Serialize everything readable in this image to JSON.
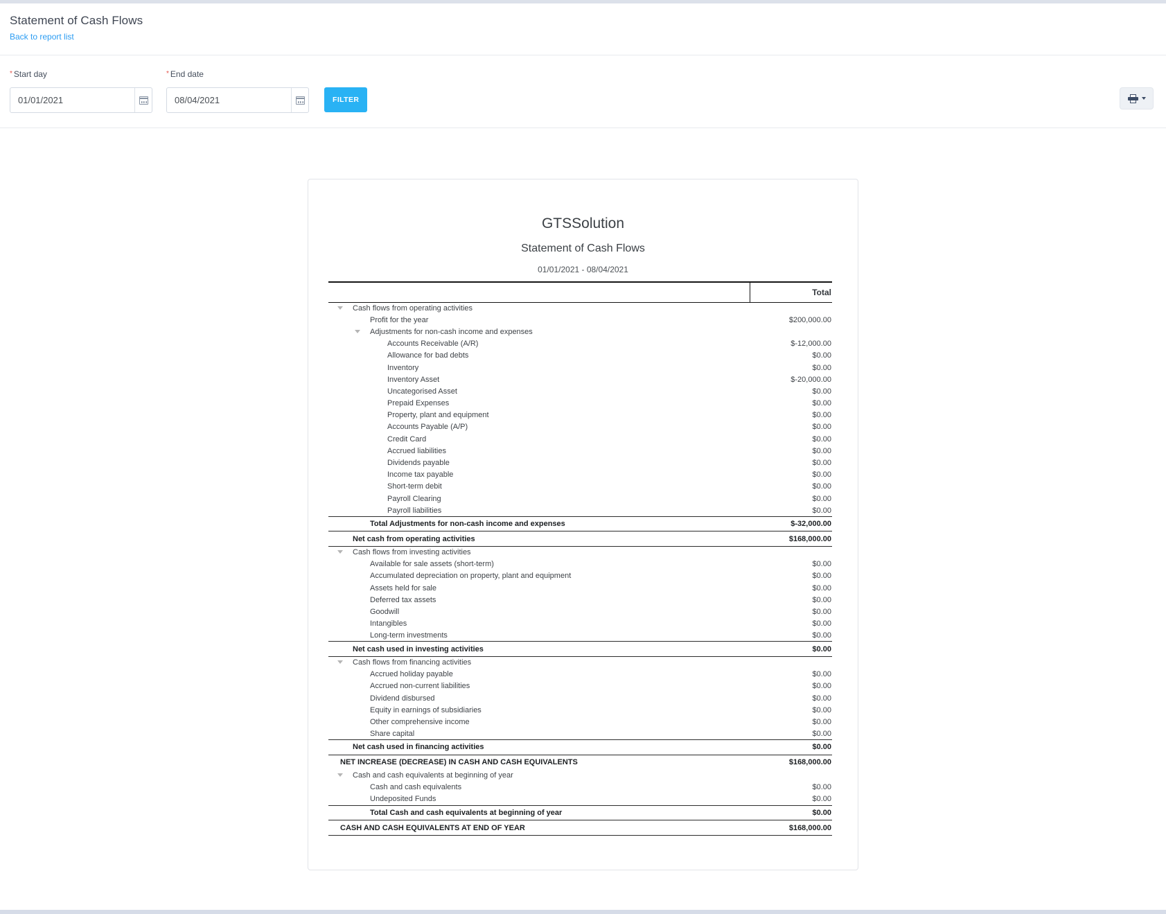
{
  "header": {
    "title": "Statement of Cash Flows",
    "back_link": "Back to report list"
  },
  "filters": {
    "required_mark": "*",
    "start_label": "Start day",
    "start_value": "01/01/2021",
    "end_label": "End date",
    "end_value": "08/04/2021",
    "filter_button": "FILTER"
  },
  "report": {
    "company": "GTSSolution",
    "title": "Statement of Cash Flows",
    "date_range": "01/01/2021 - 08/04/2021",
    "total_header": "Total",
    "rows": [
      {
        "label": "Cash flows from operating activities",
        "value": "",
        "level": 0,
        "type": "group"
      },
      {
        "label": "Profit for the year",
        "value": "$200,000.00",
        "level": 1,
        "type": "item"
      },
      {
        "label": "Adjustments for non-cash income and expenses",
        "value": "",
        "level": 1,
        "type": "group"
      },
      {
        "label": "Accounts Receivable (A/R)",
        "value": "$-12,000.00",
        "level": 2,
        "type": "item"
      },
      {
        "label": "Allowance for bad debts",
        "value": "$0.00",
        "level": 2,
        "type": "item"
      },
      {
        "label": "Inventory",
        "value": "$0.00",
        "level": 2,
        "type": "item"
      },
      {
        "label": "Inventory Asset",
        "value": "$-20,000.00",
        "level": 2,
        "type": "item"
      },
      {
        "label": "Uncategorised Asset",
        "value": "$0.00",
        "level": 2,
        "type": "item"
      },
      {
        "label": "Prepaid Expenses",
        "value": "$0.00",
        "level": 2,
        "type": "item"
      },
      {
        "label": "Property, plant and equipment",
        "value": "$0.00",
        "level": 2,
        "type": "item"
      },
      {
        "label": "Accounts Payable (A/P)",
        "value": "$0.00",
        "level": 2,
        "type": "item"
      },
      {
        "label": "Credit Card",
        "value": "$0.00",
        "level": 2,
        "type": "item"
      },
      {
        "label": "Accrued liabilities",
        "value": "$0.00",
        "level": 2,
        "type": "item"
      },
      {
        "label": "Dividends payable",
        "value": "$0.00",
        "level": 2,
        "type": "item"
      },
      {
        "label": "Income tax payable",
        "value": "$0.00",
        "level": 2,
        "type": "item"
      },
      {
        "label": "Short-term debit",
        "value": "$0.00",
        "level": 2,
        "type": "item"
      },
      {
        "label": "Payroll Clearing",
        "value": "$0.00",
        "level": 2,
        "type": "item"
      },
      {
        "label": "Payroll liabilities",
        "value": "$0.00",
        "level": 2,
        "type": "item"
      },
      {
        "label": "Total Adjustments for non-cash income and expenses",
        "value": "$-32,000.00",
        "level": 1,
        "type": "total"
      },
      {
        "label": "Net cash from operating activities",
        "value": "$168,000.00",
        "level": 0,
        "type": "total"
      },
      {
        "label": "Cash flows from investing activities",
        "value": "",
        "level": 0,
        "type": "group"
      },
      {
        "label": "Available for sale assets (short-term)",
        "value": "$0.00",
        "level": 1,
        "type": "item"
      },
      {
        "label": "Accumulated depreciation on property, plant and equipment",
        "value": "$0.00",
        "level": 1,
        "type": "item"
      },
      {
        "label": "Assets held for sale",
        "value": "$0.00",
        "level": 1,
        "type": "item"
      },
      {
        "label": "Deferred tax assets",
        "value": "$0.00",
        "level": 1,
        "type": "item"
      },
      {
        "label": "Goodwill",
        "value": "$0.00",
        "level": 1,
        "type": "item"
      },
      {
        "label": "Intangibles",
        "value": "$0.00",
        "level": 1,
        "type": "item"
      },
      {
        "label": "Long-term investments",
        "value": "$0.00",
        "level": 1,
        "type": "item"
      },
      {
        "label": "Net cash used in investing activities",
        "value": "$0.00",
        "level": 0,
        "type": "total"
      },
      {
        "label": "Cash flows from financing activities",
        "value": "",
        "level": 0,
        "type": "group"
      },
      {
        "label": "Accrued holiday payable",
        "value": "$0.00",
        "level": 1,
        "type": "item"
      },
      {
        "label": "Accrued non-current liabilities",
        "value": "$0.00",
        "level": 1,
        "type": "item"
      },
      {
        "label": "Dividend disbursed",
        "value": "$0.00",
        "level": 1,
        "type": "item"
      },
      {
        "label": "Equity in earnings of subsidiaries",
        "value": "$0.00",
        "level": 1,
        "type": "item"
      },
      {
        "label": "Other comprehensive income",
        "value": "$0.00",
        "level": 1,
        "type": "item"
      },
      {
        "label": "Share capital",
        "value": "$0.00",
        "level": 1,
        "type": "item"
      },
      {
        "label": "Net cash used in financing activities",
        "value": "$0.00",
        "level": 0,
        "type": "total"
      },
      {
        "label": "NET INCREASE (DECREASE) IN CASH AND CASH EQUIVALENTS",
        "value": "$168,000.00",
        "level": -1,
        "type": "grand_open"
      },
      {
        "label": "Cash and cash equivalents at beginning of year",
        "value": "",
        "level": 0,
        "type": "group"
      },
      {
        "label": "Cash and cash equivalents",
        "value": "$0.00",
        "level": 1,
        "type": "item"
      },
      {
        "label": "Undeposited Funds",
        "value": "$0.00",
        "level": 1,
        "type": "item"
      },
      {
        "label": "Total Cash and cash equivalents at beginning of year",
        "value": "$0.00",
        "level": 1,
        "type": "total"
      },
      {
        "label": "CASH AND CASH EQUIVALENTS AT END OF YEAR",
        "value": "$168,000.00",
        "level": -1,
        "type": "grand"
      }
    ]
  },
  "colors": {
    "accent_blue": "#29b2f4",
    "link_blue": "#2b9cf2",
    "required_red": "#e4554b"
  }
}
